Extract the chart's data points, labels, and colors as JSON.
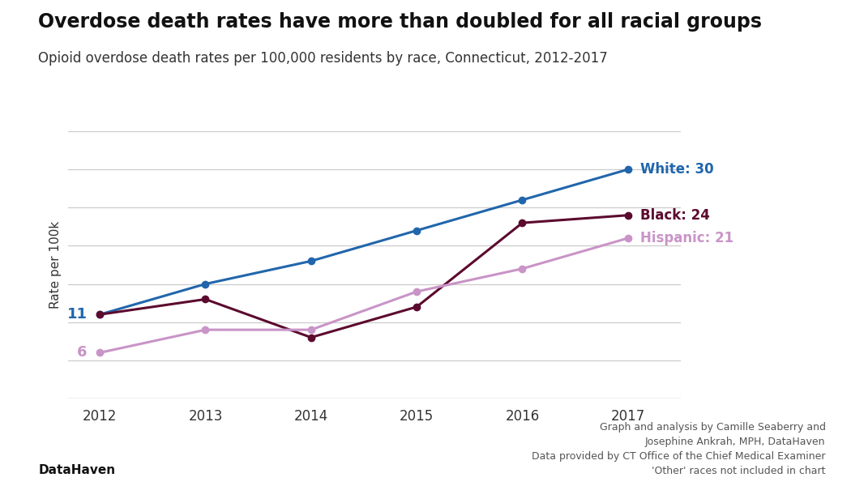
{
  "title": "Overdose death rates have more than doubled for all racial groups",
  "subtitle": "Opioid overdose death rates per 100,000 residents by race, Connecticut, 2012-2017",
  "ylabel": "Rate per 100k",
  "years": [
    2012,
    2013,
    2014,
    2015,
    2016,
    2017
  ],
  "white": [
    11,
    15,
    18,
    22,
    26,
    30
  ],
  "black": [
    11,
    13,
    8,
    12,
    23,
    24
  ],
  "hispanic": [
    6,
    9,
    9,
    14,
    17,
    21
  ],
  "white_color": "#2166ac",
  "black_color": "#5c0a2e",
  "hispanic_color": "#c994c7",
  "white_label": "White: 30",
  "black_label": "Black: 24",
  "hispanic_label": "Hispanic: 21",
  "white_start_label": "11",
  "hispanic_start_label": "6",
  "footer_left": "DataHaven",
  "footer_right": "Graph and analysis by Camille Seaberry and\nJosephine Ankrah, MPH, DataHaven\nData provided by CT Office of the Chief Medical Examiner\n'Other' races not included in chart",
  "ylim_min": 0,
  "ylim_max": 35,
  "background_color": "#ffffff",
  "grid_color": "#cccccc"
}
